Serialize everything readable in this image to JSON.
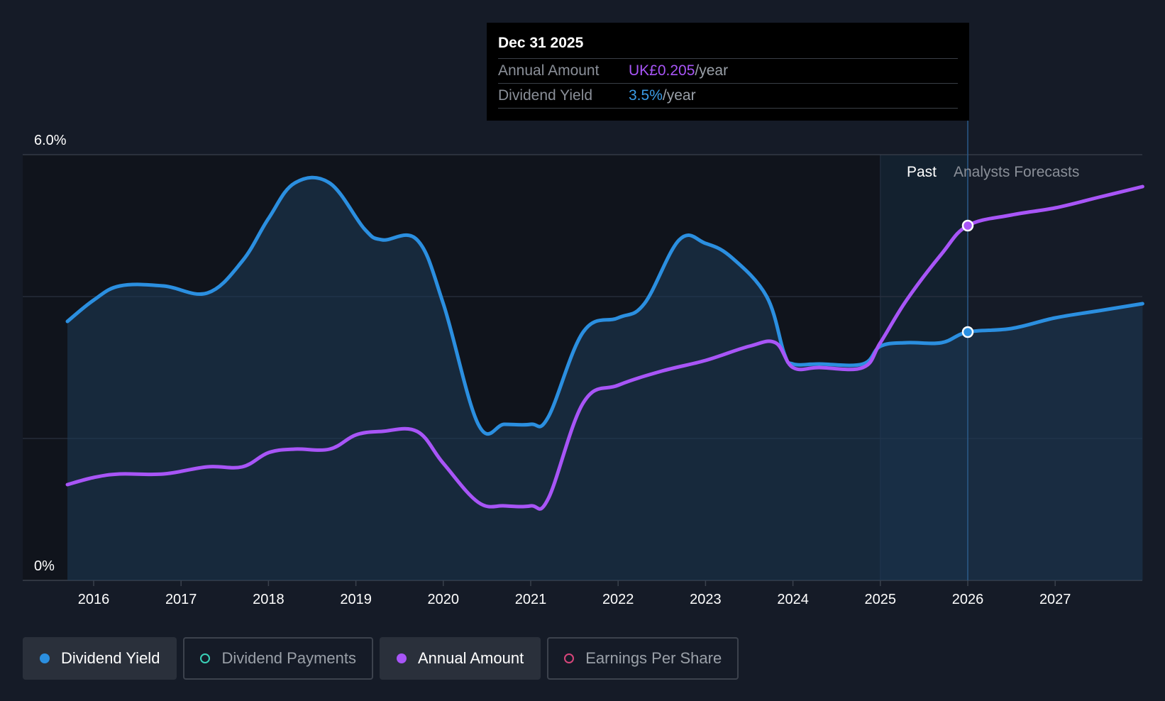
{
  "chart_data": {
    "type": "line",
    "x_ticks": [
      "2016",
      "2017",
      "2018",
      "2019",
      "2020",
      "2021",
      "2022",
      "2023",
      "2024",
      "2025",
      "2026",
      "2027"
    ],
    "y_ticks": [
      "6.0%",
      "0%"
    ],
    "ylim": [
      0,
      6.0
    ],
    "region_labels": {
      "past": "Past",
      "forecast": "Analysts Forecasts"
    },
    "series": [
      {
        "name": "Dividend Yield",
        "color": "#2b8fe0",
        "x": [
          2015.7,
          2016.0,
          2016.3,
          2016.8,
          2017.3,
          2017.7,
          2018.0,
          2018.3,
          2018.7,
          2019.1,
          2019.3,
          2019.7,
          2020.0,
          2020.4,
          2020.7,
          2021.0,
          2021.2,
          2021.6,
          2022.0,
          2022.3,
          2022.7,
          2023.0,
          2023.3,
          2023.7,
          2023.9,
          2024.0,
          2024.3,
          2024.8,
          2025.0,
          2025.3,
          2025.7,
          2026.0,
          2026.5,
          2027.0,
          2027.5,
          2028.0
        ],
        "y": [
          3.65,
          3.95,
          4.15,
          4.15,
          4.05,
          4.5,
          5.1,
          5.6,
          5.6,
          4.95,
          4.8,
          4.8,
          3.9,
          2.2,
          2.2,
          2.2,
          2.3,
          3.5,
          3.7,
          3.9,
          4.8,
          4.75,
          4.55,
          4.0,
          3.2,
          3.05,
          3.05,
          3.05,
          3.3,
          3.35,
          3.35,
          3.5,
          3.55,
          3.7,
          3.8,
          3.9
        ]
      },
      {
        "name": "Annual Amount",
        "color": "#a855f7",
        "x": [
          2015.7,
          2016.0,
          2016.3,
          2016.8,
          2017.3,
          2017.7,
          2018.0,
          2018.3,
          2018.7,
          2019.0,
          2019.3,
          2019.7,
          2020.0,
          2020.4,
          2020.7,
          2021.0,
          2021.2,
          2021.6,
          2022.0,
          2022.5,
          2023.0,
          2023.5,
          2023.8,
          2024.0,
          2024.3,
          2024.8,
          2025.0,
          2025.3,
          2025.7,
          2026.0,
          2026.5,
          2027.0,
          2027.5,
          2028.0
        ],
        "y": [
          1.35,
          1.45,
          1.5,
          1.5,
          1.6,
          1.6,
          1.8,
          1.85,
          1.85,
          2.05,
          2.1,
          2.1,
          1.65,
          1.1,
          1.05,
          1.05,
          1.15,
          2.5,
          2.75,
          2.95,
          3.1,
          3.3,
          3.35,
          3.0,
          3.0,
          3.0,
          3.35,
          3.95,
          4.6,
          5.0,
          5.15,
          5.25,
          5.4,
          5.55
        ]
      }
    ],
    "forecast_start": 2025.0,
    "highlight_x": 2026.0
  },
  "tooltip": {
    "date": "Dec 31 2025",
    "annual_label": "Annual Amount",
    "annual_value": "UK£0.205",
    "annual_unit": "/year",
    "yield_label": "Dividend Yield",
    "yield_value": "3.5%",
    "yield_unit": "/year"
  },
  "legend": [
    {
      "label": "Dividend Yield",
      "color": "#2b8fe0",
      "active": true,
      "filled": true
    },
    {
      "label": "Dividend Payments",
      "color": "#3ad1b8",
      "active": false,
      "filled": false
    },
    {
      "label": "Annual Amount",
      "color": "#a855f7",
      "active": true,
      "filled": true
    },
    {
      "label": "Earnings Per Share",
      "color": "#d6457a",
      "active": false,
      "filled": false
    }
  ]
}
